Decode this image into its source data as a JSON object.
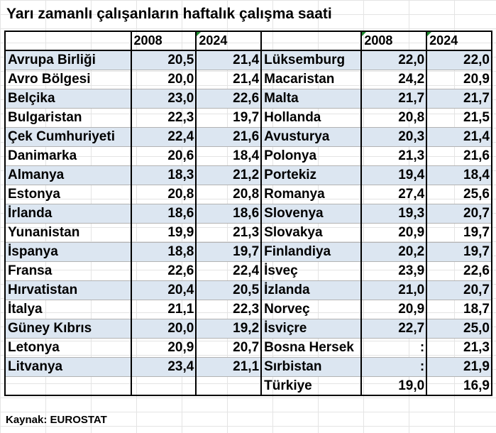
{
  "title": "Yarı zamanlı çalışanların haftalık çalışma saati",
  "headers": {
    "col1": "",
    "col2": "2008",
    "col3": "2024",
    "col4": "",
    "col5": "2008",
    "col6": "2024"
  },
  "left_rows": [
    {
      "country": "Avrupa Birliği",
      "y2008": "20,5",
      "y2024": "21,4"
    },
    {
      "country": "Avro Bölgesi",
      "y2008": "20,0",
      "y2024": "21,4"
    },
    {
      "country": "Belçika",
      "y2008": "23,0",
      "y2024": "22,6"
    },
    {
      "country": "Bulgaristan",
      "y2008": "22,3",
      "y2024": "19,7"
    },
    {
      "country": "Çek Cumhuriyeti",
      "y2008": "22,4",
      "y2024": "21,6"
    },
    {
      "country": "Danimarka",
      "y2008": "20,6",
      "y2024": "18,4"
    },
    {
      "country": "Almanya",
      "y2008": "18,3",
      "y2024": "21,2"
    },
    {
      "country": "Estonya",
      "y2008": "20,8",
      "y2024": "20,8"
    },
    {
      "country": "İrlanda",
      "y2008": "18,6",
      "y2024": "18,6"
    },
    {
      "country": "Yunanistan",
      "y2008": "19,9",
      "y2024": "21,3"
    },
    {
      "country": "İspanya",
      "y2008": "18,8",
      "y2024": "19,7"
    },
    {
      "country": "Fransa",
      "y2008": "22,6",
      "y2024": "22,4"
    },
    {
      "country": "Hırvatistan",
      "y2008": "20,4",
      "y2024": "20,5"
    },
    {
      "country": "İtalya",
      "y2008": "21,1",
      "y2024": "22,3"
    },
    {
      "country": "Güney Kıbrıs",
      "y2008": "20,0",
      "y2024": "19,2"
    },
    {
      "country": "Letonya",
      "y2008": "20,9",
      "y2024": "20,7"
    },
    {
      "country": "Litvanya",
      "y2008": "23,4",
      "y2024": "21,1"
    },
    {
      "country": "",
      "y2008": "",
      "y2024": ""
    }
  ],
  "right_rows": [
    {
      "country": "Lüksemburg",
      "y2008": "22,0",
      "y2024": "22,0"
    },
    {
      "country": "Macaristan",
      "y2008": "24,2",
      "y2024": "20,9"
    },
    {
      "country": "Malta",
      "y2008": "21,7",
      "y2024": "21,7"
    },
    {
      "country": "Hollanda",
      "y2008": "20,8",
      "y2024": "21,5"
    },
    {
      "country": "Avusturya",
      "y2008": "20,3",
      "y2024": "21,4"
    },
    {
      "country": "Polonya",
      "y2008": "21,3",
      "y2024": "21,6"
    },
    {
      "country": "Portekiz",
      "y2008": "19,4",
      "y2024": "18,4"
    },
    {
      "country": "Romanya",
      "y2008": "27,4",
      "y2024": "25,6"
    },
    {
      "country": "Slovenya",
      "y2008": "19,3",
      "y2024": "20,7"
    },
    {
      "country": "Slovakya",
      "y2008": "20,9",
      "y2024": "19,7"
    },
    {
      "country": "Finlandiya",
      "y2008": "20,2",
      "y2024": "19,7"
    },
    {
      "country": "İsveç",
      "y2008": "23,9",
      "y2024": "22,6"
    },
    {
      "country": "İzlanda",
      "y2008": "21,0",
      "y2024": "20,7"
    },
    {
      "country": "Norveç",
      "y2008": "20,9",
      "y2024": "18,7"
    },
    {
      "country": "İsviçre",
      "y2008": "22,7",
      "y2024": "25,0"
    },
    {
      "country": "Bosna Hersek",
      "y2008": ":",
      "y2024": "21,3"
    },
    {
      "country": "Sırbistan",
      "y2008": ":",
      "y2024": "21,9"
    },
    {
      "country": "Türkiye",
      "y2008": "19,0",
      "y2024": "16,9"
    }
  ],
  "source": "Kaynak: EUROSTAT"
}
